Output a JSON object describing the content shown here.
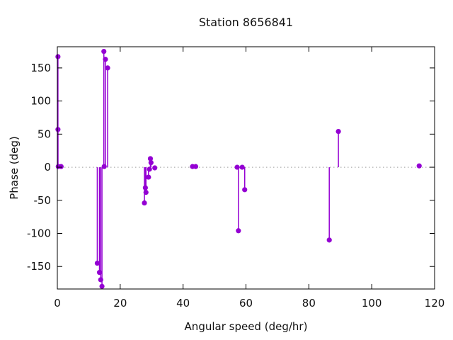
{
  "page": {
    "background": "#ffffff"
  },
  "colors": {
    "series": "#9400d3",
    "axis": "#000000",
    "zero_line": "#9a9a9a",
    "text": "#111111"
  },
  "chart_data": {
    "type": "scatter",
    "style": "impulses+points (stem plot)",
    "title": "Station 8656841",
    "xlabel": "Angular speed (deg/hr)",
    "ylabel": "Phase (deg)",
    "xlim": [
      0,
      120
    ],
    "ylim": [
      -184,
      182
    ],
    "xticks": [
      0,
      20,
      40,
      60,
      80,
      100,
      120
    ],
    "yticks": [
      -150,
      -100,
      -50,
      0,
      50,
      100,
      150
    ],
    "grid": "dotted zero line only",
    "legend": "none",
    "series": [
      {
        "name": "phase",
        "color": "#9400d3",
        "x": [
          0.2,
          0.2,
          0.3,
          1.2,
          12.7,
          13.4,
          13.8,
          14.2,
          14.8,
          14.9,
          15.3,
          16.0,
          27.7,
          28.0,
          28.2,
          29.0,
          29.3,
          29.6,
          29.8,
          31.0,
          43.0,
          44.0,
          57.2,
          57.6,
          58.8,
          59.6,
          86.5,
          89.4,
          115.1
        ],
        "y": [
          167,
          57,
          1,
          1,
          -145,
          -159,
          -170,
          -180,
          175,
          1,
          163,
          150,
          -54,
          -31,
          -38,
          -15,
          -3,
          13,
          7,
          -1,
          1,
          1,
          0,
          -96,
          0,
          -34,
          -110,
          54,
          2
        ]
      }
    ]
  },
  "layout_note": "plot box left=81 top=66 width=533 height=342"
}
